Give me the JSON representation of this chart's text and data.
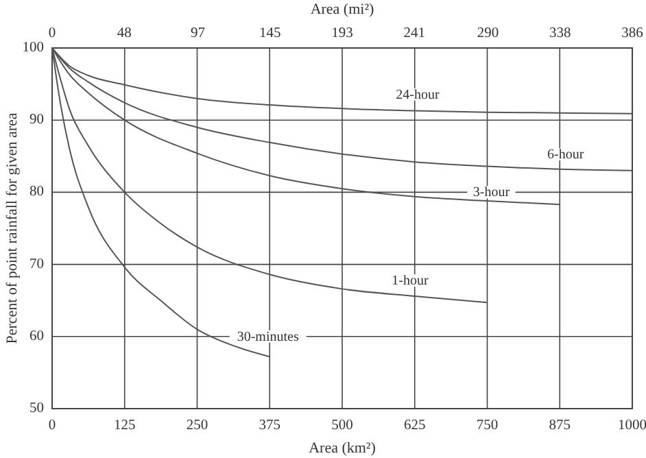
{
  "chart_data": {
    "type": "line",
    "xlabel": "Area (km²)",
    "ylabel": "Percent of point rainfall for given area",
    "x2label": "Area (mi²)",
    "xlim": [
      0,
      1000
    ],
    "xticks": [
      0,
      125,
      250,
      375,
      500,
      625,
      750,
      875,
      1000
    ],
    "x2lim": [
      0,
      386
    ],
    "x2ticks": [
      0,
      48,
      97,
      145,
      193,
      241,
      290,
      338,
      386
    ],
    "ylim": [
      50,
      100
    ],
    "yticks": [
      50,
      60,
      70,
      80,
      90,
      100
    ],
    "grid": true,
    "marker": "none",
    "line_style": "solid",
    "series": [
      {
        "name": "24-hour",
        "color": "#555555",
        "x": [
          0,
          30,
          62,
          125,
          250,
          375,
          500,
          625,
          750,
          875,
          1000
        ],
        "values": [
          100,
          97.5,
          96.2,
          94.9,
          93.0,
          92.1,
          91.6,
          91.3,
          91.1,
          91.0,
          90.9
        ]
      },
      {
        "name": "6-hour",
        "color": "#555555",
        "x": [
          0,
          30,
          62,
          125,
          250,
          375,
          500,
          625,
          750,
          875,
          1000
        ],
        "values": [
          100,
          97.2,
          95.3,
          92.4,
          89.0,
          86.9,
          85.3,
          84.2,
          83.6,
          83.2,
          83.0
        ]
      },
      {
        "name": "3-hour",
        "color": "#555555",
        "x": [
          0,
          30,
          62,
          125,
          250,
          375,
          500,
          625,
          750,
          875
        ],
        "values": [
          100,
          96.3,
          93.8,
          90.0,
          85.4,
          82.3,
          80.5,
          79.4,
          78.8,
          78.3
        ]
      },
      {
        "name": "1-hour",
        "color": "#555555",
        "x": [
          0,
          15,
          30,
          62,
          125,
          190,
          250,
          375,
          500,
          625,
          750
        ],
        "values": [
          100,
          95.5,
          91.5,
          86.5,
          80.0,
          75.5,
          72.4,
          68.6,
          66.6,
          65.6,
          64.7
        ]
      },
      {
        "name": "30-minutes",
        "color": "#555555",
        "x": [
          0,
          8,
          15,
          30,
          62,
          125,
          190,
          250,
          310,
          375
        ],
        "values": [
          100,
          95.5,
          92.0,
          86.0,
          78.0,
          69.6,
          64.8,
          61.0,
          58.8,
          57.2
        ]
      }
    ]
  }
}
